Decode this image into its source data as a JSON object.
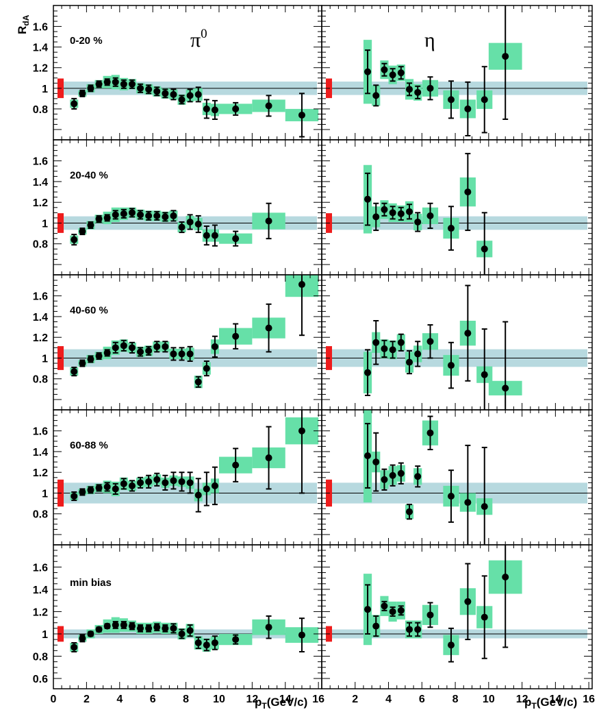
{
  "chart_data": {
    "type": "scatter",
    "ylabel": "R",
    "ylabel_sub": "dA",
    "xlabel": "p",
    "xlabel_sub": "T",
    "xlabel_unit": "(GeV/c)",
    "ylim": [
      0.6,
      1.75
    ],
    "xlim": [
      0,
      16.2
    ],
    "grid": false,
    "y_ticks": [
      "0.6",
      "0.8",
      "1",
      "1.2",
      "1.4",
      "1.6"
    ],
    "x_ticks_left": [
      "0",
      "2",
      "4",
      "6",
      "8",
      "10",
      "12",
      "14",
      "16"
    ],
    "x_ticks_right": [
      "2",
      "4",
      "6",
      "8",
      "10",
      "12",
      "14",
      "16"
    ],
    "columns": [
      {
        "symbol": "π",
        "superscript": "0"
      },
      {
        "symbol": "η",
        "superscript": ""
      }
    ],
    "colors": {
      "marker": "#000000",
      "sys_box": "#66e0a8",
      "band": "#b7d9df",
      "norm_bar": "#ee1c1c",
      "ref_line": "#000000"
    },
    "panels": [
      {
        "centrality": "0-20 %",
        "band": 0.065,
        "pi0": {
          "x": [
            1.25,
            1.75,
            2.25,
            2.75,
            3.25,
            3.75,
            4.25,
            4.75,
            5.25,
            5.75,
            6.25,
            6.75,
            7.25,
            7.75,
            8.25,
            8.75,
            9.25,
            9.75,
            11,
            13,
            15
          ],
          "y": [
            0.85,
            0.95,
            1.0,
            1.04,
            1.06,
            1.06,
            1.04,
            1.04,
            1.0,
            0.99,
            0.97,
            0.95,
            0.94,
            0.89,
            0.93,
            0.94,
            0.8,
            0.79,
            0.8,
            0.83,
            0.74
          ],
          "err": [
            0.05,
            0.03,
            0.03,
            0.03,
            0.03,
            0.04,
            0.04,
            0.04,
            0.04,
            0.04,
            0.04,
            0.04,
            0.05,
            0.04,
            0.06,
            0.07,
            0.09,
            0.09,
            0.06,
            0.1,
            0.21
          ],
          "sys": [
            0.04,
            0.03,
            0.04,
            0.04,
            0.06,
            0.07,
            0.06,
            0.05,
            0.05,
            0.05,
            0.05,
            0.05,
            0.05,
            0.05,
            0.06,
            0.06,
            0.06,
            0.06,
            0.05,
            0.06,
            0.06
          ]
        },
        "eta": {
          "x": [
            2.75,
            3.25,
            3.75,
            4.25,
            4.75,
            5.25,
            5.75,
            6.5,
            7.75,
            8.75,
            9.75,
            11
          ],
          "y": [
            1.16,
            0.93,
            1.18,
            1.13,
            1.15,
            0.99,
            0.96,
            1.0,
            0.89,
            0.8,
            0.89,
            1.31
          ],
          "err": [
            0.21,
            0.1,
            0.06,
            0.06,
            0.06,
            0.06,
            0.06,
            0.11,
            0.18,
            0.26,
            0.32,
            0.61
          ],
          "sys": [
            0.31,
            0.1,
            0.09,
            0.09,
            0.08,
            0.1,
            0.08,
            0.08,
            0.09,
            0.09,
            0.09,
            0.13
          ]
        }
      },
      {
        "centrality": "20-40 %",
        "band": 0.065,
        "pi0": {
          "x": [
            1.25,
            1.75,
            2.25,
            2.75,
            3.25,
            3.75,
            4.25,
            4.75,
            5.25,
            5.75,
            6.25,
            6.75,
            7.25,
            7.75,
            8.25,
            8.75,
            9.25,
            9.75,
            11,
            13
          ],
          "y": [
            0.84,
            0.92,
            0.98,
            1.04,
            1.05,
            1.08,
            1.09,
            1.1,
            1.08,
            1.07,
            1.07,
            1.06,
            1.07,
            0.96,
            1.01,
            0.99,
            0.88,
            0.88,
            0.85,
            1.02
          ],
          "err": [
            0.05,
            0.03,
            0.03,
            0.03,
            0.03,
            0.04,
            0.04,
            0.04,
            0.04,
            0.04,
            0.04,
            0.04,
            0.05,
            0.05,
            0.07,
            0.08,
            0.09,
            0.1,
            0.07,
            0.17
          ],
          "sys": [
            0.04,
            0.03,
            0.04,
            0.04,
            0.06,
            0.07,
            0.06,
            0.05,
            0.05,
            0.05,
            0.05,
            0.05,
            0.05,
            0.05,
            0.06,
            0.06,
            0.06,
            0.06,
            0.05,
            0.08
          ]
        },
        "eta": {
          "x": [
            2.75,
            3.25,
            3.75,
            4.25,
            4.75,
            5.25,
            5.75,
            6.5,
            7.75,
            8.75,
            9.75
          ],
          "y": [
            1.23,
            1.06,
            1.13,
            1.1,
            1.09,
            1.11,
            1.01,
            1.07,
            0.95,
            1.3,
            0.75
          ],
          "err": [
            0.25,
            0.13,
            0.06,
            0.06,
            0.06,
            0.07,
            0.09,
            0.12,
            0.21,
            0.37,
            0.35
          ],
          "sys": [
            0.33,
            0.1,
            0.09,
            0.09,
            0.08,
            0.1,
            0.08,
            0.08,
            0.1,
            0.14,
            0.08
          ]
        }
      },
      {
        "centrality": "40-60 %",
        "band": 0.085,
        "pi0": {
          "x": [
            1.25,
            1.75,
            2.25,
            2.75,
            3.25,
            3.75,
            4.25,
            4.75,
            5.25,
            5.75,
            6.25,
            6.75,
            7.25,
            7.75,
            8.25,
            8.75,
            9.25,
            9.75,
            11,
            13,
            15
          ],
          "y": [
            0.87,
            0.95,
            0.99,
            1.02,
            1.05,
            1.1,
            1.12,
            1.1,
            1.06,
            1.07,
            1.11,
            1.11,
            1.04,
            1.04,
            1.04,
            0.77,
            0.9,
            1.11,
            1.21,
            1.29,
            1.71
          ],
          "err": [
            0.04,
            0.03,
            0.03,
            0.03,
            0.03,
            0.05,
            0.05,
            0.05,
            0.04,
            0.04,
            0.05,
            0.05,
            0.06,
            0.06,
            0.07,
            0.05,
            0.07,
            0.1,
            0.12,
            0.23,
            0.49
          ],
          "sys": [
            0.04,
            0.03,
            0.04,
            0.04,
            0.06,
            0.07,
            0.06,
            0.05,
            0.05,
            0.05,
            0.05,
            0.05,
            0.05,
            0.05,
            0.06,
            0.06,
            0.06,
            0.07,
            0.08,
            0.1,
            0.12
          ]
        },
        "eta": {
          "x": [
            2.75,
            3.25,
            3.75,
            4.25,
            4.75,
            5.25,
            5.75,
            6.5,
            7.75,
            8.75,
            9.75,
            11
          ],
          "y": [
            0.86,
            1.15,
            1.09,
            1.08,
            1.15,
            0.96,
            1.04,
            1.16,
            0.93,
            1.24,
            0.84,
            0.71
          ],
          "err": [
            0.22,
            0.21,
            0.08,
            0.08,
            0.08,
            0.11,
            0.12,
            0.16,
            0.22,
            0.46,
            0.44,
            0.64
          ],
          "sys": [
            0.2,
            0.1,
            0.09,
            0.09,
            0.08,
            0.1,
            0.08,
            0.08,
            0.1,
            0.12,
            0.08,
            0.07
          ]
        }
      },
      {
        "centrality": "60-88 %",
        "band": 0.1,
        "pi0": {
          "x": [
            1.25,
            1.75,
            2.25,
            2.75,
            3.25,
            3.75,
            4.25,
            4.75,
            5.25,
            5.75,
            6.25,
            6.75,
            7.25,
            7.75,
            8.25,
            8.75,
            9.25,
            9.75,
            11,
            13,
            15
          ],
          "y": [
            0.97,
            1.01,
            1.03,
            1.05,
            1.06,
            1.04,
            1.09,
            1.07,
            1.1,
            1.11,
            1.13,
            1.1,
            1.12,
            1.11,
            1.1,
            0.98,
            1.04,
            1.07,
            1.27,
            1.34,
            1.6
          ],
          "err": [
            0.04,
            0.03,
            0.03,
            0.03,
            0.04,
            0.05,
            0.05,
            0.05,
            0.05,
            0.06,
            0.06,
            0.07,
            0.08,
            0.09,
            0.1,
            0.16,
            0.16,
            0.18,
            0.16,
            0.3,
            0.6
          ],
          "sys": [
            0.04,
            0.03,
            0.04,
            0.04,
            0.06,
            0.07,
            0.06,
            0.05,
            0.05,
            0.05,
            0.05,
            0.05,
            0.05,
            0.05,
            0.06,
            0.06,
            0.06,
            0.07,
            0.08,
            0.1,
            0.13
          ]
        },
        "eta": {
          "x": [
            2.75,
            3.25,
            3.75,
            4.25,
            4.75,
            5.25,
            5.75,
            6.5,
            7.75,
            8.75,
            9.75
          ],
          "y": [
            1.36,
            1.3,
            1.13,
            1.17,
            1.19,
            0.82,
            1.16,
            1.58,
            0.97,
            0.91,
            0.87
          ],
          "err": [
            0.31,
            0.28,
            0.1,
            0.1,
            0.1,
            0.07,
            0.1,
            0.16,
            0.25,
            0.55,
            0.57
          ],
          "sys": [
            0.45,
            0.1,
            0.09,
            0.09,
            0.08,
            0.07,
            0.08,
            0.12,
            0.1,
            0.09,
            0.08
          ]
        }
      },
      {
        "centrality": "min bias",
        "band": 0.04,
        "pi0": {
          "x": [
            1.25,
            1.75,
            2.25,
            2.75,
            3.25,
            3.75,
            4.25,
            4.75,
            5.25,
            5.75,
            6.25,
            6.75,
            7.25,
            7.75,
            8.25,
            8.75,
            9.25,
            9.75,
            11,
            13,
            15
          ],
          "y": [
            0.88,
            0.96,
            1.0,
            1.04,
            1.07,
            1.08,
            1.08,
            1.07,
            1.05,
            1.05,
            1.06,
            1.05,
            1.05,
            1.0,
            1.03,
            0.92,
            0.9,
            0.92,
            0.95,
            1.06,
            0.99
          ],
          "err": [
            0.04,
            0.03,
            0.02,
            0.02,
            0.02,
            0.03,
            0.03,
            0.03,
            0.03,
            0.03,
            0.03,
            0.03,
            0.04,
            0.04,
            0.05,
            0.05,
            0.05,
            0.06,
            0.04,
            0.1,
            0.15
          ],
          "sys": [
            0.04,
            0.03,
            0.04,
            0.04,
            0.06,
            0.07,
            0.06,
            0.05,
            0.05,
            0.05,
            0.05,
            0.05,
            0.05,
            0.05,
            0.06,
            0.06,
            0.06,
            0.06,
            0.05,
            0.07,
            0.07
          ]
        },
        "eta": {
          "x": [
            2.75,
            3.25,
            3.75,
            4.25,
            4.75,
            5.25,
            5.75,
            6.5,
            7.75,
            8.75,
            9.75,
            11
          ],
          "y": [
            1.22,
            1.07,
            1.25,
            1.2,
            1.21,
            1.04,
            1.04,
            1.17,
            0.9,
            1.29,
            1.15,
            1.51
          ],
          "err": [
            0.22,
            0.09,
            0.04,
            0.04,
            0.04,
            0.06,
            0.06,
            0.11,
            0.15,
            0.34,
            0.37,
            0.63
          ],
          "sys": [
            0.32,
            0.1,
            0.09,
            0.09,
            0.08,
            0.08,
            0.08,
            0.09,
            0.09,
            0.12,
            0.1,
            0.15
          ]
        }
      }
    ]
  }
}
